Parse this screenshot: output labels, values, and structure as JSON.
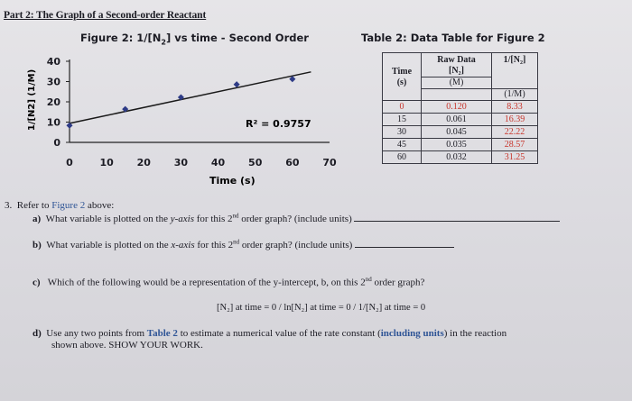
{
  "part_title": "Part 2: The Graph of a Second-order Reactant",
  "figure": {
    "caption_prefix": "Figure 2: 1/[N",
    "caption_sub": "2",
    "caption_suffix": "] vs time - Second Order",
    "ylabel": "1/[N2] (1/M)",
    "xlabel": "Time (s)",
    "r2": "R² = 0.9757"
  },
  "chart_data": {
    "type": "scatter",
    "xlim": [
      0,
      70
    ],
    "ylim": [
      0,
      40
    ],
    "x_ticks": [
      "0",
      "10",
      "20",
      "30",
      "40",
      "50",
      "60",
      "70"
    ],
    "y_ticks": [
      "0",
      "10",
      "20",
      "30",
      "40"
    ],
    "x": [
      0,
      15,
      30,
      45,
      60
    ],
    "y": [
      8.33,
      16.39,
      22.22,
      28.57,
      31.25
    ],
    "trendline": {
      "slope": 0.39,
      "intercept": 9.4
    },
    "xlabel": "Time (s)",
    "ylabel": "1/[N2] (1/M)",
    "annotation": "R² = 0.9757",
    "point_color": "#2e3b86",
    "line_color": "#1a1a1a"
  },
  "table": {
    "caption": "Table 2: Data Table for Figure 2",
    "col_time": "Time",
    "col_time_unit": "(s)",
    "col_raw_line1": "Raw Data",
    "col_raw_line2": "[N₂]",
    "col_raw_unit": "(M)",
    "col_inv": "1/[N₂]",
    "col_inv_unit": "(1/M)",
    "rows": [
      {
        "time": "0",
        "raw": "0.120",
        "inv": "8.33"
      },
      {
        "time": "15",
        "raw": "0.061",
        "inv": "16.39"
      },
      {
        "time": "30",
        "raw": "0.045",
        "inv": "22.22"
      },
      {
        "time": "45",
        "raw": "0.035",
        "inv": "28.57"
      },
      {
        "time": "60",
        "raw": "0.032",
        "inv": "31.25"
      }
    ]
  },
  "questions": {
    "number": "3.",
    "intro_prefix": "Refer to ",
    "intro_link": "Figure 2",
    "intro_suffix": " above:",
    "a": {
      "label": "a)",
      "text1": "What variable is plotted on the ",
      "em": "y-axis",
      "text2": " for this 2",
      "sup": "nd",
      "text3": " order graph? (include units)"
    },
    "b": {
      "label": "b)",
      "text1": "What variable is plotted on the ",
      "em": "x-axis",
      "text2": " for this 2",
      "sup": "nd",
      "text3": " order graph? (include units)"
    },
    "c": {
      "label": "c)",
      "text": "Which of the following would be a representation of the y-intercept, b, on this 2",
      "sup": "nd",
      "text_end": " order graph?"
    },
    "c_options": "[N₂] at time = 0  /  ln[N₂] at time = 0  /  1/[N₂] at time = 0",
    "d": {
      "label": "d)",
      "text1": "Use any two points from ",
      "link": "Table 2",
      "text2": " to estimate a numerical value of the rate constant (",
      "bold_link": "including units",
      "text3": ") in the reaction",
      "line2": "shown above. SHOW YOUR WORK."
    }
  }
}
